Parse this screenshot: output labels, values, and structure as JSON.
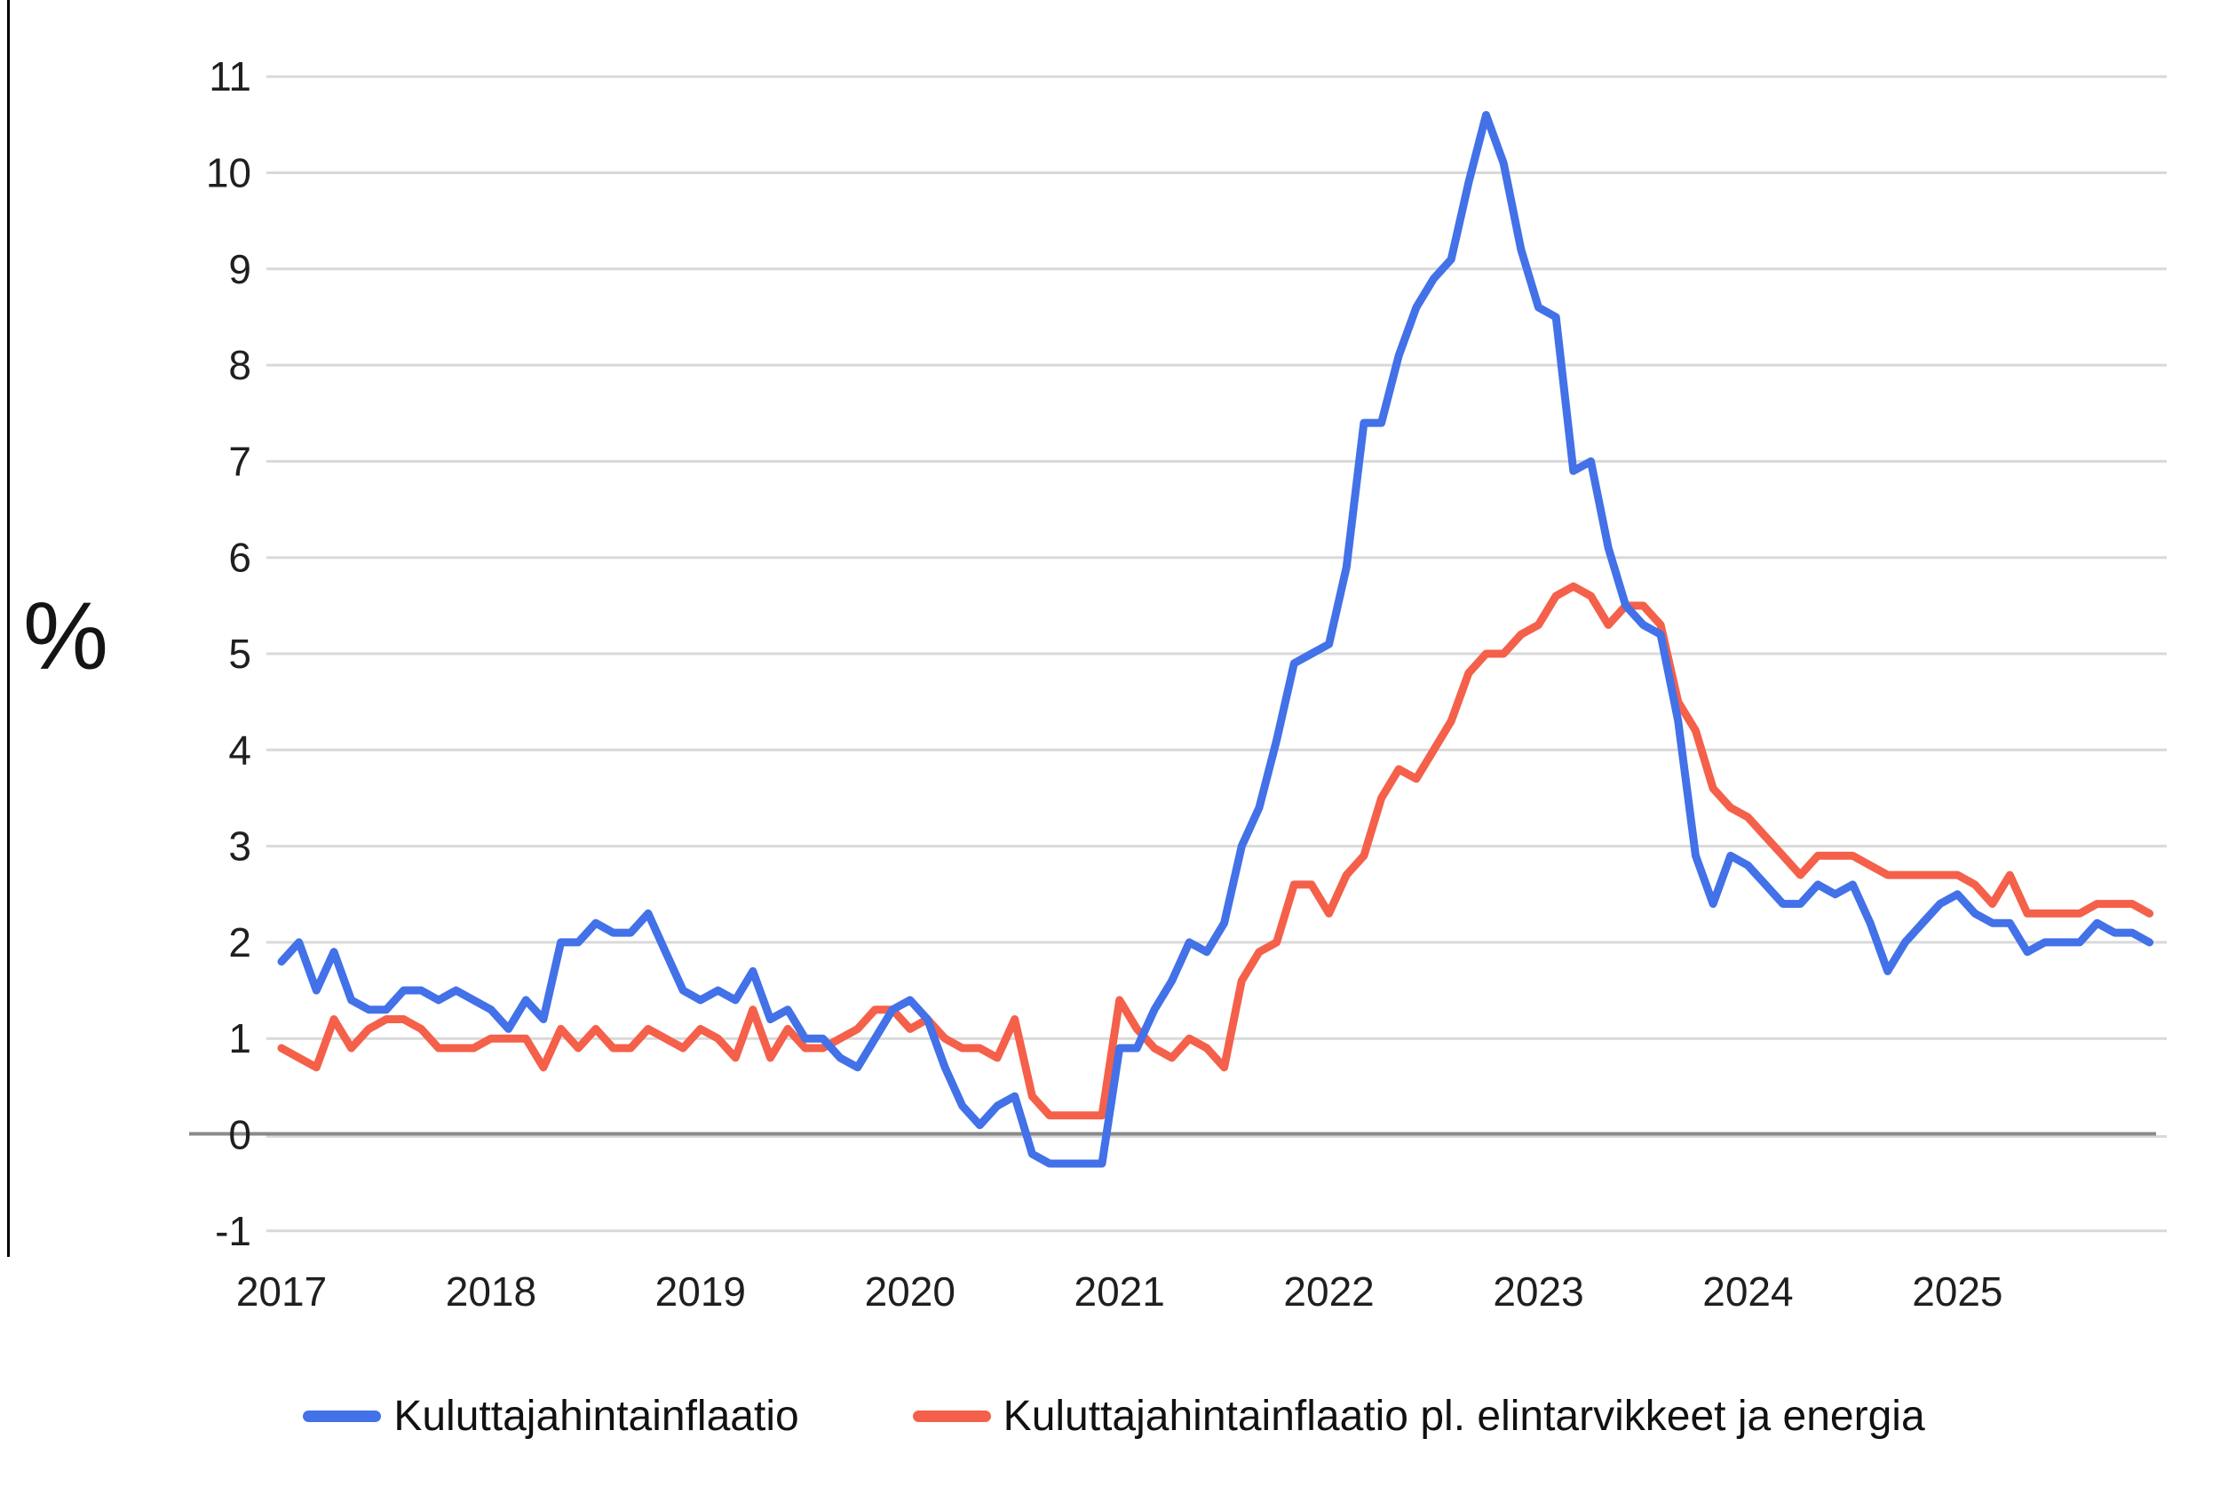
{
  "chart_data": {
    "type": "line",
    "title": "",
    "ylabel": "%",
    "xlabel": "",
    "x_unit": "month",
    "x_start": "2017-01",
    "x_end": "2025-12",
    "x_tick_labels": [
      "2017",
      "2018",
      "2019",
      "2020",
      "2021",
      "2022",
      "2023",
      "2024",
      "2025"
    ],
    "ylim": [
      -1,
      11
    ],
    "yticks": [
      -1,
      0,
      1,
      2,
      3,
      4,
      5,
      6,
      7,
      8,
      9,
      10,
      11
    ],
    "grid": "horizontal",
    "zero_line": true,
    "legend_position": "bottom",
    "colors": {
      "gridline": "#d9d9d9",
      "zero_line": "#8a8a8a",
      "tick_text": "#1f1f1f",
      "background": "#ffffff"
    },
    "series": [
      {
        "name": "Kuluttajahintainflaatio",
        "color": "#4271e8",
        "values": [
          1.8,
          2.0,
          1.5,
          1.9,
          1.4,
          1.3,
          1.3,
          1.5,
          1.5,
          1.4,
          1.5,
          1.4,
          1.3,
          1.1,
          1.4,
          1.2,
          2.0,
          2.0,
          2.2,
          2.1,
          2.1,
          2.3,
          1.9,
          1.5,
          1.4,
          1.5,
          1.4,
          1.7,
          1.2,
          1.3,
          1.0,
          1.0,
          0.8,
          0.7,
          1.0,
          1.3,
          1.4,
          1.2,
          0.7,
          0.3,
          0.1,
          0.3,
          0.4,
          -0.2,
          -0.3,
          -0.3,
          -0.3,
          -0.3,
          0.9,
          0.9,
          1.3,
          1.6,
          2.0,
          1.9,
          2.2,
          3.0,
          3.4,
          4.1,
          4.9,
          5.0,
          5.1,
          5.9,
          7.4,
          7.4,
          8.1,
          8.6,
          8.9,
          9.1,
          9.9,
          10.6,
          10.1,
          9.2,
          8.6,
          8.5,
          6.9,
          7.0,
          6.1,
          5.5,
          5.3,
          5.2,
          4.3,
          2.9,
          2.4,
          2.9,
          2.8,
          2.6,
          2.4,
          2.4,
          2.6,
          2.5,
          2.6,
          2.2,
          1.7,
          2.0,
          2.2,
          2.4,
          2.5,
          2.3,
          2.2,
          2.2,
          1.9,
          2.0,
          2.0,
          2.0,
          2.2,
          2.1,
          2.1,
          2.0
        ]
      },
      {
        "name": "Kuluttajahintainflaatio pl. elintarvikkeet ja energia",
        "color": "#f4604a",
        "values": [
          0.9,
          0.8,
          0.7,
          1.2,
          0.9,
          1.1,
          1.2,
          1.2,
          1.1,
          0.9,
          0.9,
          0.9,
          1.0,
          1.0,
          1.0,
          0.7,
          1.1,
          0.9,
          1.1,
          0.9,
          0.9,
          1.1,
          1.0,
          0.9,
          1.1,
          1.0,
          0.8,
          1.3,
          0.8,
          1.1,
          0.9,
          0.9,
          1.0,
          1.1,
          1.3,
          1.3,
          1.1,
          1.2,
          1.0,
          0.9,
          0.9,
          0.8,
          1.2,
          0.4,
          0.2,
          0.2,
          0.2,
          0.2,
          1.4,
          1.1,
          0.9,
          0.8,
          1.0,
          0.9,
          0.7,
          1.6,
          1.9,
          2.0,
          2.6,
          2.6,
          2.3,
          2.7,
          2.9,
          3.5,
          3.8,
          3.7,
          4.0,
          4.3,
          4.8,
          5.0,
          5.0,
          5.2,
          5.3,
          5.6,
          5.7,
          5.6,
          5.3,
          5.5,
          5.5,
          5.3,
          4.5,
          4.2,
          3.6,
          3.4,
          3.3,
          3.1,
          2.9,
          2.7,
          2.9,
          2.9,
          2.9,
          2.8,
          2.7,
          2.7,
          2.7,
          2.7,
          2.7,
          2.6,
          2.4,
          2.7,
          2.3,
          2.3,
          2.3,
          2.3,
          2.4,
          2.4,
          2.4,
          2.3
        ]
      }
    ]
  }
}
